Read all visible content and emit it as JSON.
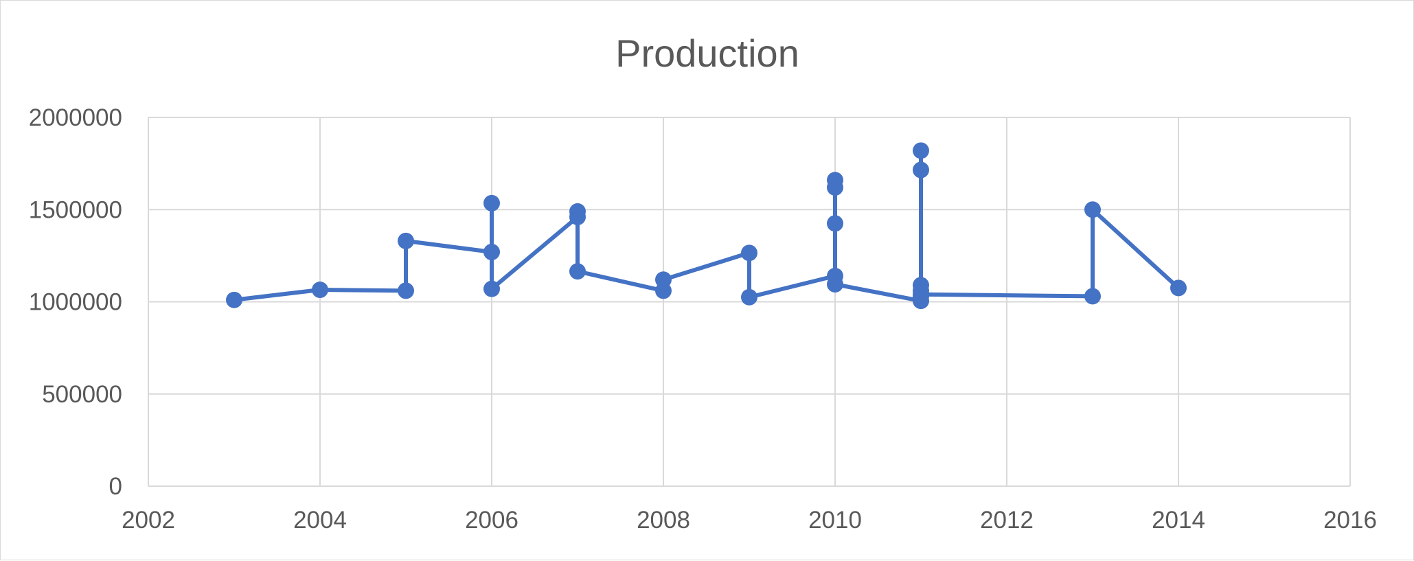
{
  "chart_data": {
    "type": "scatter",
    "title": "Production",
    "xlabel": "",
    "ylabel": "",
    "xlim": [
      2002,
      2016
    ],
    "ylim": [
      0,
      2000000
    ],
    "x_ticks": [
      "2002",
      "2004",
      "2006",
      "2008",
      "2010",
      "2012",
      "2014",
      "2016"
    ],
    "y_ticks": [
      "0",
      "500000",
      "1000000",
      "1500000",
      "2000000"
    ],
    "grid": true,
    "legend": "none",
    "color": "#4472C4",
    "series": [
      {
        "x": [
          2003,
          2004,
          2005,
          2005,
          2006,
          2006,
          2006,
          2007,
          2007,
          2007,
          2008,
          2008,
          2009,
          2009,
          2010,
          2010,
          2010,
          2010,
          2010,
          2011,
          2011,
          2011,
          2011,
          2011,
          2011,
          2011,
          2013,
          2013,
          2014
        ],
        "y": [
          1010000,
          1065000,
          1060000,
          1330000,
          1270000,
          1535000,
          1070000,
          1460000,
          1490000,
          1165000,
          1060000,
          1120000,
          1265000,
          1025000,
          1140000,
          1620000,
          1660000,
          1425000,
          1095000,
          1005000,
          1060000,
          1090000,
          1030000,
          1715000,
          1820000,
          1040000,
          1030000,
          1500000,
          1075000
        ]
      }
    ]
  }
}
